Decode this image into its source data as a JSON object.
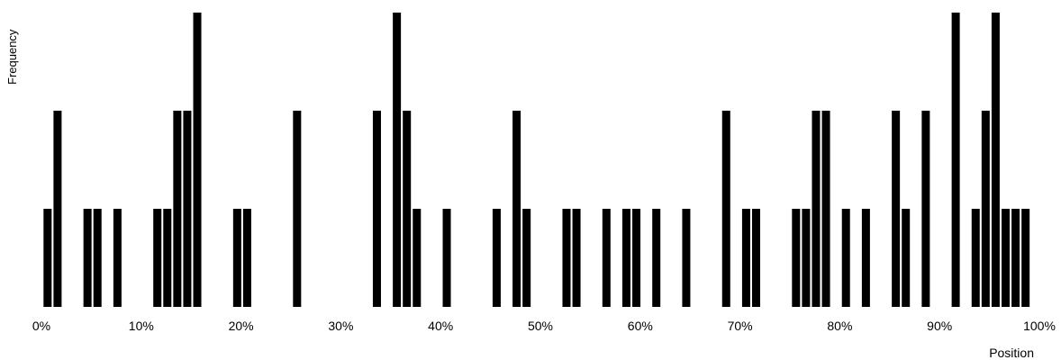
{
  "chart_data": {
    "type": "bar",
    "xlabel": "Position",
    "ylabel": "Frequency",
    "xlim": [
      0,
      100
    ],
    "ylim": [
      0,
      3
    ],
    "xtick_labels": [
      "0%",
      "10%",
      "20%",
      "30%",
      "40%",
      "50%",
      "60%",
      "70%",
      "80%",
      "90%",
      "100%"
    ],
    "xtick_values": [
      0,
      10,
      20,
      30,
      40,
      50,
      60,
      70,
      80,
      90,
      100
    ],
    "bar_color": "#000000",
    "grid": false,
    "x": [
      0.3,
      1.3,
      4.3,
      5.3,
      7.3,
      11.3,
      12.3,
      13.3,
      14.3,
      15.3,
      19.3,
      20.3,
      25.3,
      33.3,
      35.3,
      36.3,
      37.3,
      40.3,
      45.3,
      47.3,
      48.3,
      52.3,
      53.3,
      56.3,
      58.3,
      59.3,
      61.3,
      64.3,
      68.3,
      70.3,
      71.3,
      75.3,
      76.3,
      77.3,
      78.3,
      80.3,
      82.3,
      85.3,
      86.3,
      88.3,
      91.3,
      93.3,
      94.3,
      95.3,
      96.3,
      97.3,
      98.3
    ],
    "values": [
      1,
      2,
      1,
      1,
      1,
      1,
      1,
      2,
      2,
      3,
      1,
      1,
      2,
      2,
      3,
      2,
      1,
      1,
      1,
      2,
      1,
      1,
      1,
      1,
      1,
      1,
      1,
      1,
      2,
      1,
      1,
      1,
      1,
      2,
      2,
      1,
      1,
      2,
      1,
      2,
      3,
      1,
      2,
      3,
      1,
      1,
      1
    ]
  }
}
